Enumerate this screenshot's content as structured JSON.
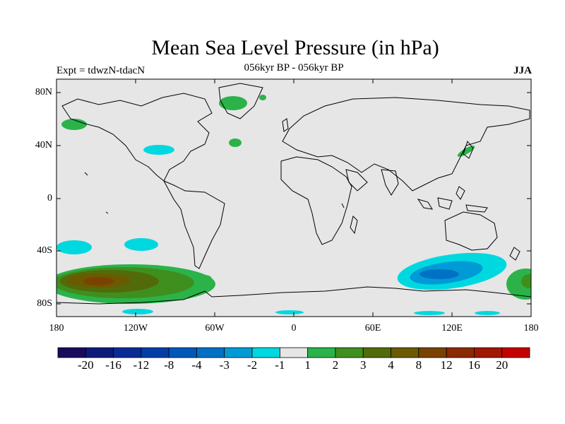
{
  "title": "Mean Sea Level Pressure (in hPa)",
  "left_label": "Expt = tdwzN-tdacN",
  "center_label": "056kyr BP - 056kyr BP",
  "right_label": "JJA",
  "lat_ticks": [
    "80N",
    "40N",
    "0",
    "40S",
    "80S"
  ],
  "lon_ticks": [
    "180",
    "120W",
    "60W",
    "0",
    "60E",
    "120E",
    "180"
  ],
  "colorbar": {
    "colors": [
      "#1a0a5c",
      "#0d1a7a",
      "#0a2a96",
      "#003fa8",
      "#0058b8",
      "#0071c4",
      "#009bd6",
      "#00d8e0",
      "#e6e6e6",
      "#2bb34a",
      "#3f8f1e",
      "#526b0a",
      "#6b5a00",
      "#7a4200",
      "#8a2a00",
      "#a01800",
      "#c40000"
    ],
    "labels": [
      "-20",
      "-16",
      "-12",
      "-8",
      "-4",
      "-3",
      "-2",
      "-1",
      "1",
      "2",
      "3",
      "4",
      "8",
      "12",
      "16",
      "20"
    ]
  },
  "map_colors": {
    "ocean": "#e6e6e6",
    "coast": "#000000"
  }
}
